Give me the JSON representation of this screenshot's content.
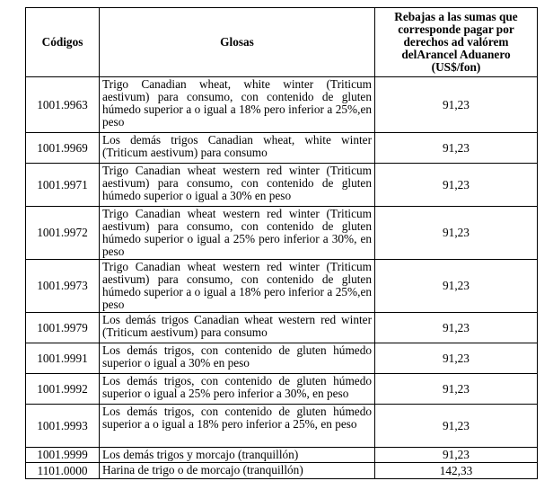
{
  "table": {
    "headers": {
      "codes": "Códigos",
      "glosses": "Glosas",
      "rebates": "Rebajas a las sumas que corresponde pagar por derechos ad valórem delArancel Aduanero (US$/fon)"
    },
    "rows": [
      {
        "code": "1001.9963",
        "gloss": "Trigo Canadian wheat, white winter (Triticum aestivum) para consumo, con contenido de gluten húmedo superior a o igual a 18% pero inferior a 25%,en peso",
        "value": "91,23"
      },
      {
        "code": "1001.9969",
        "gloss": "Los demás trigos Canadian wheat, white winter (Triticum aestivum) para consumo",
        "value": "91,23"
      },
      {
        "code": "1001.9971",
        "gloss": "Trigo Canadian wheat western red winter (Triticum aestivum) para consumo, con contenido de gluten húmedo superior o igual a 30% en peso",
        "value": "91,23"
      },
      {
        "code": "1001.9972",
        "gloss": "Trigo Canadian wheat western red winter (Triticum aestivum) para consumo, con contenido de gluten húmedo superior o igual a 25% pero inferior a 30%, en peso",
        "value": "91,23"
      },
      {
        "code": "1001.9973",
        "gloss": "Trigo Canadian wheat western red winter (Triticum aestivum) para consumo, con contenido de gluten húmedo superior a o igual a 18% pero inferior a 25%,en peso",
        "value": "91,23"
      },
      {
        "code": "1001.9979",
        "gloss": "Los demás trigos Canadian wheat western red winter (Triticum aestivum) para consumo",
        "value": "91,23"
      },
      {
        "code": "1001.9991",
        "gloss": "Los demás trigos, con contenido de gluten húmedo superior o igual a 30% en peso",
        "value": "91,23"
      },
      {
        "code": "1001.9992",
        "gloss": "Los demás trigos, con contenido de gluten húmedo superior o igual a 25% pero inferior a 30%, en peso",
        "value": "91,23"
      },
      {
        "code": "1001.9993",
        "gloss": "Los demás trigos, con contenido de gluten húmedo superior a o igual a 18% pero inferior a 25%, en peso",
        "value": "91,23"
      },
      {
        "code": "1001.9999",
        "gloss": "Los demás trigos y morcajo (tranquillón)",
        "value": "91,23"
      },
      {
        "code": "1101.0000",
        "gloss": "Harina de trigo o de morcajo (tranquillón)",
        "value": "142,33"
      }
    ]
  }
}
